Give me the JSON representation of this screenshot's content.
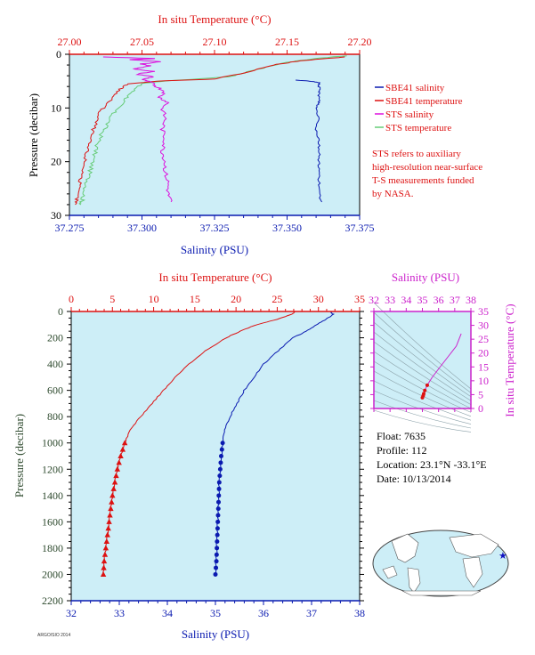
{
  "colors": {
    "temperature": "#dd1111",
    "salinity": "#0a1ab0",
    "sts_salinity": "#dd11dd",
    "sts_temperature": "#66cc77",
    "ts_axis": "#cc22cc",
    "pressure_label": "#2e4a2e",
    "plot_bg": "#cdeef7"
  },
  "top_panel": {
    "top_axis_label": "In situ Temperature (°C)",
    "bottom_axis_label": "Salinity (PSU)",
    "left_axis_label": "Pressure (decibar)",
    "temp_ticks": [
      "27.00",
      "27.05",
      "27.10",
      "27.15",
      "27.20"
    ],
    "sal_ticks": [
      "37.275",
      "37.300",
      "37.325",
      "37.350",
      "37.375"
    ],
    "pres_ticks": [
      "0",
      "10",
      "20",
      "30"
    ],
    "legend": [
      "SBE41 salinity",
      "SBE41 temperature",
      "STS salinity",
      "STS temperature"
    ],
    "note": [
      "STS refers to auxiliary",
      "high-resolution near-surface",
      "T-S measurements funded",
      "by NASA."
    ]
  },
  "main_panel": {
    "top_axis_label": "In situ Temperature (°C)",
    "bottom_axis_label": "Salinity (PSU)",
    "left_axis_label": "Pressure (decibar)",
    "temp_ticks": [
      "0",
      "5",
      "10",
      "15",
      "20",
      "25",
      "30",
      "35"
    ],
    "sal_ticks": [
      "32",
      "33",
      "34",
      "35",
      "36",
      "37",
      "38"
    ],
    "pres_ticks": [
      "0",
      "200",
      "400",
      "600",
      "800",
      "1000",
      "1200",
      "1400",
      "1600",
      "1800",
      "2000",
      "2200"
    ]
  },
  "ts_panel": {
    "top_axis_label": "Salinity (PSU)",
    "right_axis_label": "In situ Temperature (°C)",
    "sal_ticks": [
      "32",
      "33",
      "34",
      "35",
      "36",
      "37",
      "38"
    ],
    "temp_ticks": [
      "0",
      "5",
      "10",
      "15",
      "20",
      "25",
      "30",
      "35"
    ]
  },
  "float_info": {
    "float": "Float:  7635",
    "profile": "Profile:  112",
    "location": "Location:  23.1°N  -33.1°E",
    "date": "Date:  10/13/2014"
  },
  "stamp": "ARGO/SIO 2014",
  "chart_data": [
    {
      "type": "line",
      "title": "",
      "xlabel": "Salinity (PSU)",
      "x2label": "In situ Temperature (°C)",
      "ylabel": "Pressure (decibar)",
      "xlim_salinity": [
        37.275,
        37.375
      ],
      "xlim_temperature": [
        27.0,
        27.2
      ],
      "ylim": [
        30,
        0
      ],
      "grid": false,
      "legend_placement": "right",
      "series": [
        {
          "name": "SBE41 salinity",
          "axis": "salinity",
          "points": [
            [
              37.353,
              4.8
            ],
            [
              37.358,
              5.0
            ],
            [
              37.361,
              5.3
            ],
            [
              37.361,
              6
            ],
            [
              37.361,
              7
            ],
            [
              37.361,
              8
            ],
            [
              37.361,
              9
            ],
            [
              37.36,
              10
            ],
            [
              37.361,
              12
            ],
            [
              37.36,
              14
            ],
            [
              37.361,
              16
            ],
            [
              37.361,
              18
            ],
            [
              37.361,
              20
            ],
            [
              37.361,
              22
            ],
            [
              37.361,
              24
            ],
            [
              37.361,
              26
            ],
            [
              37.362,
              27.5
            ]
          ]
        },
        {
          "name": "SBE41 temperature",
          "axis": "temperature",
          "points": [
            [
              27.19,
              0.5
            ],
            [
              27.16,
              1.2
            ],
            [
              27.14,
              2.0
            ],
            [
              27.12,
              3.5
            ],
            [
              27.1,
              4.6
            ],
            [
              27.06,
              5.0
            ],
            [
              27.04,
              5.5
            ],
            [
              27.035,
              6.5
            ],
            [
              27.03,
              8
            ],
            [
              27.025,
              9.5
            ],
            [
              27.02,
              11
            ],
            [
              27.018,
              13
            ],
            [
              27.015,
              15
            ],
            [
              27.013,
              17
            ],
            [
              27.011,
              19
            ],
            [
              27.01,
              21
            ],
            [
              27.008,
              23
            ],
            [
              27.006,
              25
            ],
            [
              27.005,
              27
            ],
            [
              27.004,
              28
            ]
          ]
        },
        {
          "name": "STS salinity",
          "axis": "salinity",
          "points": [
            [
              37.286,
              0.5
            ],
            [
              37.305,
              0.8
            ],
            [
              37.296,
              1.0
            ],
            [
              37.306,
              1.4
            ],
            [
              37.3,
              1.8
            ],
            [
              37.303,
              2.2
            ],
            [
              37.297,
              2.7
            ],
            [
              37.304,
              3.2
            ],
            [
              37.298,
              3.7
            ],
            [
              37.304,
              4.2
            ],
            [
              37.3,
              4.7
            ],
            [
              37.303,
              5.2
            ],
            [
              37.305,
              6
            ],
            [
              37.308,
              7
            ],
            [
              37.306,
              8
            ],
            [
              37.309,
              9
            ],
            [
              37.307,
              10
            ],
            [
              37.308,
              12
            ],
            [
              37.307,
              14
            ],
            [
              37.308,
              16
            ],
            [
              37.307,
              18
            ],
            [
              37.308,
              20
            ],
            [
              37.308,
              22
            ],
            [
              37.309,
              24
            ],
            [
              37.309,
              26
            ],
            [
              37.31,
              27.5
            ]
          ]
        },
        {
          "name": "STS temperature",
          "axis": "temperature",
          "points": [
            [
              27.19,
              0.3
            ],
            [
              27.17,
              0.8
            ],
            [
              27.15,
              1.5
            ],
            [
              27.13,
              2.8
            ],
            [
              27.11,
              4.2
            ],
            [
              27.07,
              4.9
            ],
            [
              27.05,
              5.4
            ],
            [
              27.045,
              6.5
            ],
            [
              27.04,
              8
            ],
            [
              27.035,
              9.5
            ],
            [
              27.03,
              11
            ],
            [
              27.026,
              13
            ],
            [
              27.022,
              15
            ],
            [
              27.019,
              17
            ],
            [
              27.017,
              19
            ],
            [
              27.015,
              21
            ],
            [
              27.013,
              23
            ],
            [
              27.011,
              25
            ],
            [
              27.009,
              27
            ],
            [
              27.008,
              28
            ]
          ]
        }
      ]
    },
    {
      "type": "line",
      "title": "",
      "xlabel": "Salinity (PSU)",
      "x2label": "In situ Temperature (°C)",
      "ylabel": "Pressure (decibar)",
      "xlim_salinity": [
        32,
        38
      ],
      "xlim_temperature": [
        0,
        35
      ],
      "ylim": [
        2200,
        0
      ],
      "grid": false,
      "series": [
        {
          "name": "Salinity",
          "axis": "salinity",
          "points": [
            [
              37.4,
              5
            ],
            [
              37.45,
              20
            ],
            [
              37.3,
              60
            ],
            [
              37.1,
              100
            ],
            [
              36.9,
              150
            ],
            [
              36.6,
              200
            ],
            [
              36.3,
              300
            ],
            [
              36.0,
              400
            ],
            [
              35.8,
              500
            ],
            [
              35.6,
              600
            ],
            [
              35.45,
              700
            ],
            [
              35.3,
              800
            ],
            [
              35.2,
              900
            ],
            [
              35.15,
              1000
            ],
            [
              35.12,
              1100
            ],
            [
              35.1,
              1200
            ],
            [
              35.08,
              1300
            ],
            [
              35.07,
              1400
            ],
            [
              35.06,
              1500
            ],
            [
              35.05,
              1600
            ],
            [
              35.04,
              1700
            ],
            [
              35.03,
              1800
            ],
            [
              35.02,
              1900
            ],
            [
              35.0,
              2000
            ]
          ]
        },
        {
          "name": "Temperature",
          "axis": "temperature",
          "points": [
            [
              27.1,
              3
            ],
            [
              26.8,
              20
            ],
            [
              25.0,
              60
            ],
            [
              22.5,
              100
            ],
            [
              20.5,
              150
            ],
            [
              18.8,
              200
            ],
            [
              16.3,
              300
            ],
            [
              14.3,
              400
            ],
            [
              12.6,
              500
            ],
            [
              11.2,
              600
            ],
            [
              9.8,
              700
            ],
            [
              8.4,
              800
            ],
            [
              7.2,
              900
            ],
            [
              6.5,
              1000
            ],
            [
              6.0,
              1100
            ],
            [
              5.6,
              1200
            ],
            [
              5.3,
              1300
            ],
            [
              5.0,
              1400
            ],
            [
              4.8,
              1500
            ],
            [
              4.6,
              1600
            ],
            [
              4.4,
              1700
            ],
            [
              4.2,
              1800
            ],
            [
              4.0,
              1900
            ],
            [
              3.9,
              2000
            ]
          ]
        }
      ],
      "marker_depths": [
        1000,
        1050,
        1100,
        1150,
        1200,
        1250,
        1300,
        1350,
        1400,
        1450,
        1500,
        1550,
        1600,
        1650,
        1700,
        1750,
        1800,
        1850,
        1900,
        1950,
        2000
      ]
    },
    {
      "type": "scatter",
      "title": "",
      "xlabel": "Salinity (PSU)",
      "ylabel": "In situ Temperature (°C)",
      "xlim": [
        32,
        38
      ],
      "ylim": [
        -2,
        35
      ],
      "grid": false,
      "series": [
        {
          "name": "T-S",
          "points": [
            [
              37.4,
              27
            ],
            [
              37.1,
              22.5
            ],
            [
              36.6,
              18.8
            ],
            [
              36.0,
              14.3
            ],
            [
              35.6,
              11.2
            ],
            [
              35.3,
              8.4
            ],
            [
              35.15,
              6.5
            ],
            [
              35.08,
              5.3
            ],
            [
              35.05,
              4.6
            ],
            [
              35.0,
              3.9
            ]
          ]
        }
      ]
    }
  ]
}
